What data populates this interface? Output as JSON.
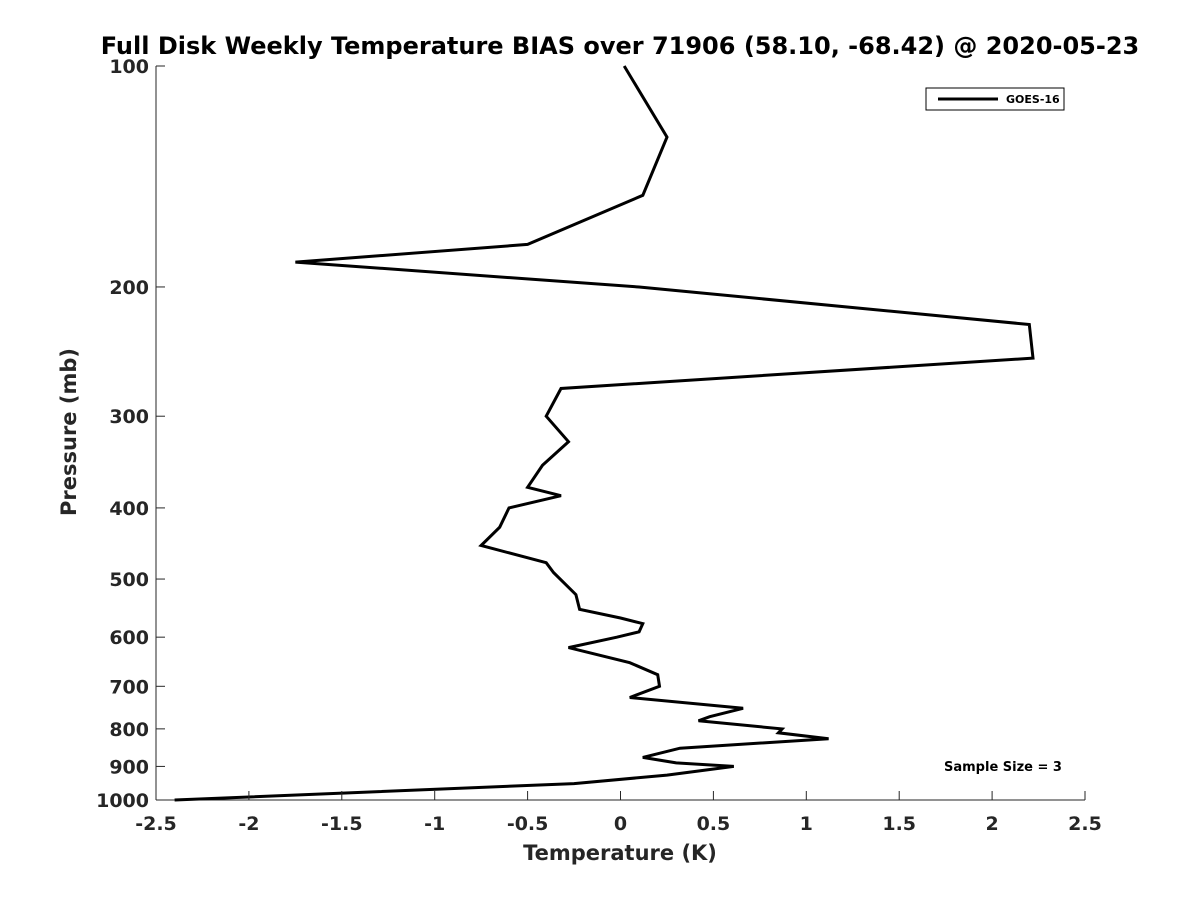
{
  "chart_data": {
    "type": "line",
    "title": "Full Disk Weekly Temperature BIAS over 71906 (58.10, -68.42) @ 2020-05-23",
    "xlabel": "Temperature (K)",
    "ylabel": "Pressure (mb)",
    "xlim": [
      -2.5,
      2.5
    ],
    "ylim": [
      100,
      1000
    ],
    "yscale": "log",
    "y_reversed": true,
    "grid": false,
    "legend_position": "top-right",
    "x_ticks": [
      -2.5,
      -2,
      -1.5,
      -1,
      -0.5,
      0,
      0.5,
      1,
      1.5,
      2,
      2.5
    ],
    "x_tick_labels": [
      "-2.5",
      "-2",
      "-1.5",
      "-1",
      "-0.5",
      "0",
      "0.5",
      "1",
      "1.5",
      "2",
      "2.5"
    ],
    "y_ticks": [
      100,
      200,
      300,
      400,
      500,
      600,
      700,
      800,
      900,
      1000
    ],
    "y_tick_labels": [
      "100",
      "200",
      "300",
      "400",
      "500",
      "600",
      "700",
      "800",
      "900",
      "1000"
    ],
    "series": [
      {
        "name": "GOES-16",
        "color": "#000000",
        "points": [
          {
            "x": 0.02,
            "y": 100
          },
          {
            "x": 0.25,
            "y": 125
          },
          {
            "x": 0.12,
            "y": 150
          },
          {
            "x": -0.5,
            "y": 175
          },
          {
            "x": -1.75,
            "y": 185
          },
          {
            "x": 0.1,
            "y": 200
          },
          {
            "x": 2.2,
            "y": 225
          },
          {
            "x": 2.22,
            "y": 250
          },
          {
            "x": -0.32,
            "y": 275
          },
          {
            "x": -0.4,
            "y": 300
          },
          {
            "x": -0.28,
            "y": 325
          },
          {
            "x": -0.42,
            "y": 350
          },
          {
            "x": -0.5,
            "y": 375
          },
          {
            "x": -0.32,
            "y": 385
          },
          {
            "x": -0.6,
            "y": 400
          },
          {
            "x": -0.65,
            "y": 425
          },
          {
            "x": -0.75,
            "y": 450
          },
          {
            "x": -0.4,
            "y": 475
          },
          {
            "x": -0.36,
            "y": 490
          },
          {
            "x": -0.24,
            "y": 525
          },
          {
            "x": -0.22,
            "y": 550
          },
          {
            "x": 0.0,
            "y": 565
          },
          {
            "x": 0.12,
            "y": 575
          },
          {
            "x": 0.1,
            "y": 590
          },
          {
            "x": -0.02,
            "y": 600
          },
          {
            "x": -0.28,
            "y": 620
          },
          {
            "x": 0.05,
            "y": 650
          },
          {
            "x": 0.2,
            "y": 675
          },
          {
            "x": 0.21,
            "y": 700
          },
          {
            "x": 0.05,
            "y": 725
          },
          {
            "x": 0.66,
            "y": 750
          },
          {
            "x": 0.48,
            "y": 770
          },
          {
            "x": 0.42,
            "y": 780
          },
          {
            "x": 0.87,
            "y": 800
          },
          {
            "x": 0.85,
            "y": 810
          },
          {
            "x": 1.12,
            "y": 825
          },
          {
            "x": 0.32,
            "y": 850
          },
          {
            "x": 0.12,
            "y": 875
          },
          {
            "x": 0.3,
            "y": 890
          },
          {
            "x": 0.61,
            "y": 900
          },
          {
            "x": 0.25,
            "y": 925
          },
          {
            "x": -0.25,
            "y": 950
          },
          {
            "x": -2.4,
            "y": 1000
          }
        ]
      }
    ],
    "annotations": [
      {
        "text": "Sample Size = 3",
        "position": "bottom-right"
      }
    ]
  }
}
